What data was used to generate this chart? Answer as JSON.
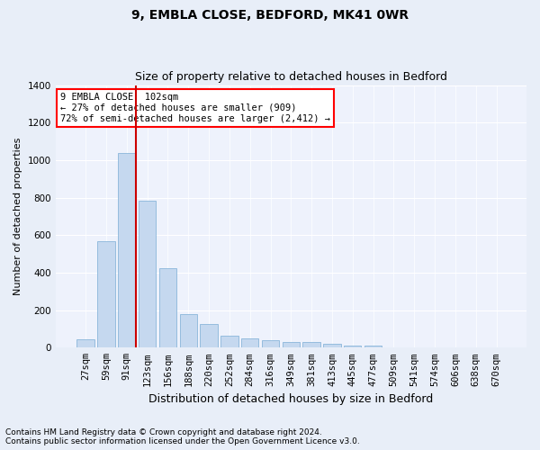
{
  "title_line1": "9, EMBLA CLOSE, BEDFORD, MK41 0WR",
  "title_line2": "Size of property relative to detached houses in Bedford",
  "xlabel": "Distribution of detached houses by size in Bedford",
  "ylabel": "Number of detached properties",
  "categories": [
    "27sqm",
    "59sqm",
    "91sqm",
    "123sqm",
    "156sqm",
    "188sqm",
    "220sqm",
    "252sqm",
    "284sqm",
    "316sqm",
    "349sqm",
    "381sqm",
    "413sqm",
    "445sqm",
    "477sqm",
    "509sqm",
    "541sqm",
    "574sqm",
    "606sqm",
    "638sqm",
    "670sqm"
  ],
  "values": [
    45,
    570,
    1040,
    785,
    425,
    180,
    128,
    63,
    50,
    42,
    28,
    28,
    20,
    12,
    9,
    0,
    0,
    0,
    0,
    0,
    0
  ],
  "bar_color": "#c5d8ef",
  "bar_edge_color": "#7aadd4",
  "vline_x_index": 2.43,
  "annotation_text_line1": "9 EMBLA CLOSE: 102sqm",
  "annotation_text_line2": "← 27% of detached houses are smaller (909)",
  "annotation_text_line3": "72% of semi-detached houses are larger (2,412) →",
  "vline_color": "#cc0000",
  "ylim": [
    0,
    1400
  ],
  "yticks": [
    0,
    200,
    400,
    600,
    800,
    1000,
    1200,
    1400
  ],
  "footnote_line1": "Contains HM Land Registry data © Crown copyright and database right 2024.",
  "footnote_line2": "Contains public sector information licensed under the Open Government Licence v3.0.",
  "bg_color": "#e8eef8",
  "plot_bg_color": "#eef2fc",
  "grid_color": "#ffffff",
  "title_fontsize": 10,
  "subtitle_fontsize": 9,
  "ylabel_fontsize": 8,
  "xlabel_fontsize": 9,
  "tick_fontsize": 7.5,
  "annot_fontsize": 7.5,
  "footnote_fontsize": 6.5
}
